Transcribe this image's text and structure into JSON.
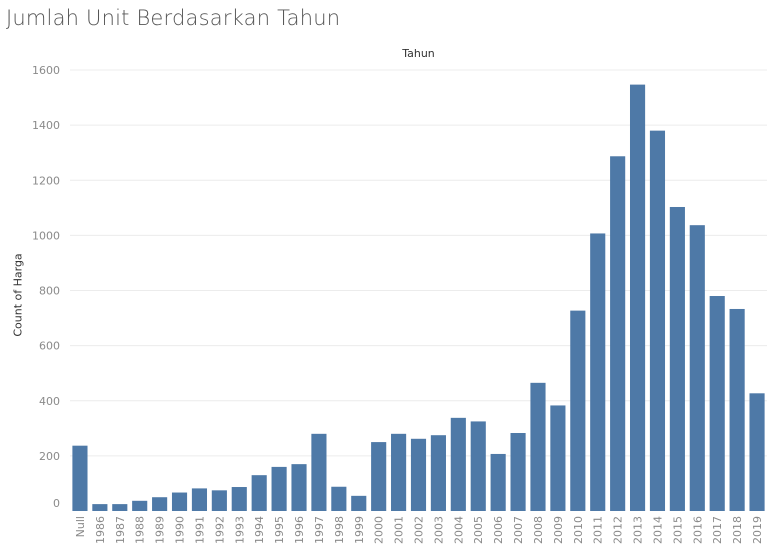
{
  "page_title": "Jumlah Unit Berdasarkan Tahun",
  "chart_data": {
    "type": "bar",
    "title": "Jumlah Unit Berdasarkan Tahun",
    "column_header": "Tahun",
    "ylabel": "Count of Harga",
    "xlabel": "",
    "ylim": [
      0,
      1600
    ],
    "y_ticks": [
      0,
      200,
      400,
      600,
      800,
      1000,
      1200,
      1400,
      1600
    ],
    "categories": [
      "Null",
      "1986",
      "1987",
      "1988",
      "1989",
      "1990",
      "1991",
      "1992",
      "1993",
      "1994",
      "1995",
      "1996",
      "1997",
      "1998",
      "1999",
      "2000",
      "2001",
      "2002",
      "2003",
      "2004",
      "2005",
      "2006",
      "2007",
      "2008",
      "2009",
      "2010",
      "2011",
      "2012",
      "2013",
      "2014",
      "2015",
      "2016",
      "2017",
      "2018",
      "2019"
    ],
    "values": [
      237,
      25,
      25,
      37,
      50,
      67,
      82,
      75,
      87,
      130,
      160,
      170,
      280,
      88,
      55,
      250,
      280,
      262,
      275,
      338,
      325,
      207,
      283,
      465,
      383,
      727,
      1007,
      1287,
      1547,
      1380,
      1103,
      1037,
      780,
      733,
      427
    ],
    "bar_color": "#4e79a7",
    "grid": true
  }
}
